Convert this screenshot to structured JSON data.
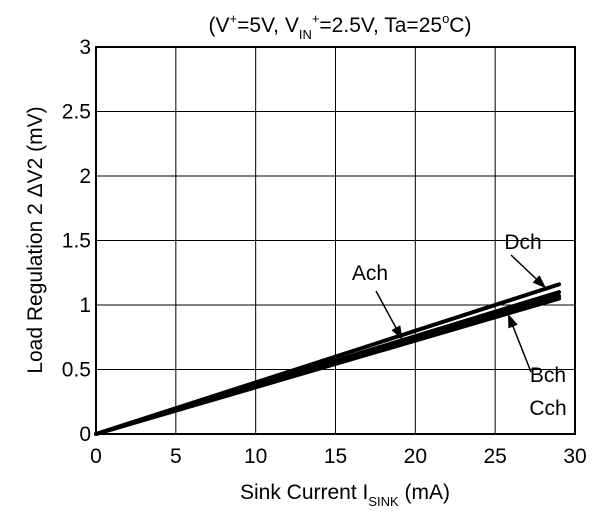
{
  "chart_data": {
    "type": "line",
    "title_parts": {
      "p1": "(V",
      "p1_sup": "+",
      "p2": "=5V, V",
      "p2_sub": "IN",
      "p2_sup": "+",
      "p3": "=2.5V, Ta=25",
      "p3_sup": "o",
      "p4": "C)"
    },
    "xlabel_parts": {
      "main": "Sink Current  I",
      "sub": "SINK",
      "unit": "  (mA)"
    },
    "ylabel": "Load Regulation 2  ΔV2  (mV)",
    "xlim": [
      0,
      30
    ],
    "ylim": [
      0,
      3
    ],
    "xticks": [
      0,
      5,
      10,
      15,
      20,
      25,
      30
    ],
    "yticks": [
      0,
      0.5,
      1,
      1.5,
      2,
      2.5,
      3
    ],
    "ytick_labels": [
      "0",
      "0.5",
      "1",
      "1.5",
      "2",
      "2.5",
      "3"
    ],
    "grid": true,
    "series": [
      {
        "name": "Ach",
        "x": [
          0,
          29
        ],
        "y": [
          0,
          1.1
        ]
      },
      {
        "name": "Bch",
        "x": [
          0,
          29
        ],
        "y": [
          0,
          1.05
        ]
      },
      {
        "name": "Cch",
        "x": [
          0,
          29
        ],
        "y": [
          0,
          1.07
        ]
      },
      {
        "name": "Dch",
        "x": [
          0,
          29
        ],
        "y": [
          0,
          1.16
        ]
      }
    ],
    "annotations": [
      {
        "label": "Ach",
        "target_series": "Ach",
        "target_x": 19.2
      },
      {
        "label": "Dch",
        "target_series": "Dch",
        "target_x": 28.2
      },
      {
        "label": "Bch",
        "target_series": "Bch",
        "target_x": 25.8
      },
      {
        "label": "Cch",
        "target_series": "Cch"
      }
    ]
  }
}
